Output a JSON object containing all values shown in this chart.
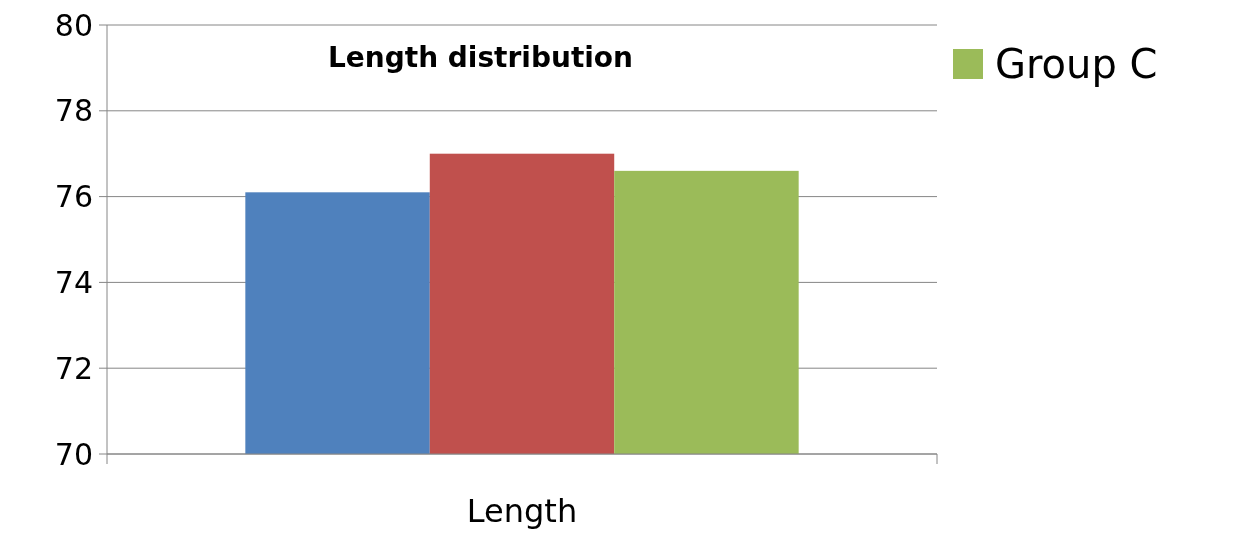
{
  "chart_data": {
    "type": "bar",
    "title": "Length distribution",
    "xlabel": "Length",
    "categories": [
      null
    ],
    "series": [
      {
        "color": "#4f81bd",
        "values": [
          76.1
        ]
      },
      {
        "color": "#c0504d",
        "values": [
          77.0
        ]
      },
      {
        "name": "Group C",
        "color": "#9bbb59",
        "values": [
          76.6
        ]
      }
    ],
    "ylim": [
      70,
      80
    ],
    "yticks": [
      70,
      72,
      74,
      76,
      78,
      80
    ],
    "grid": "y",
    "legend": "top right"
  }
}
